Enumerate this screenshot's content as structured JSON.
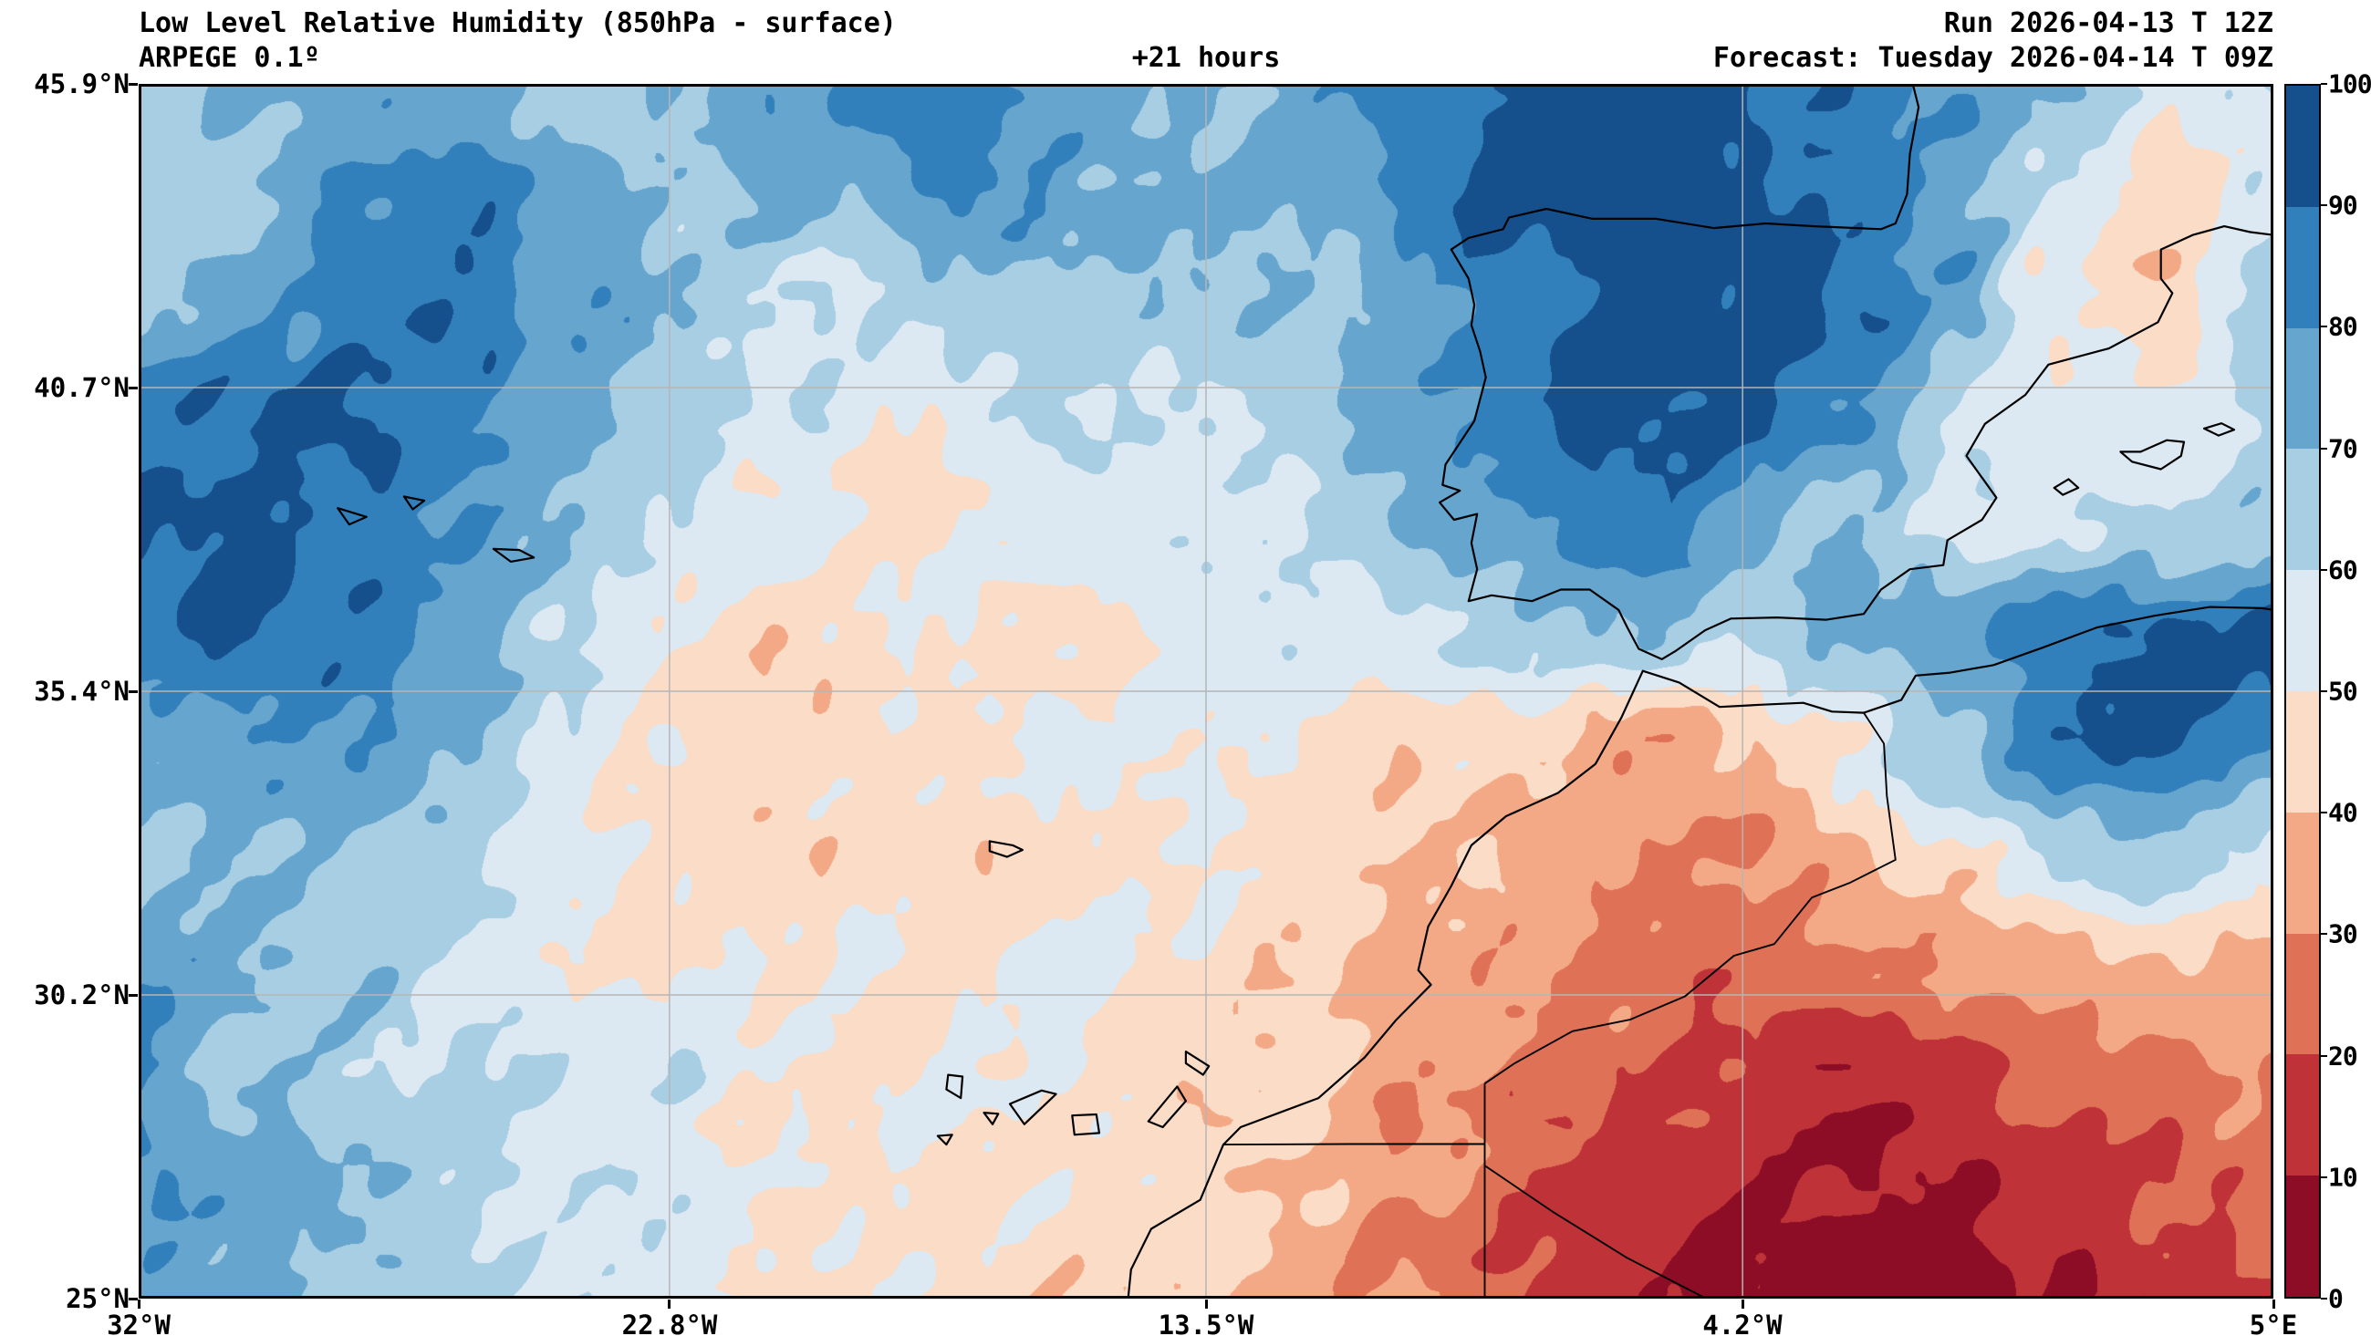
{
  "header": {
    "title": "Low Level Relative Humidity (850hPa - surface)",
    "model": "ARPEGE 0.1º",
    "lead": "+21 hours",
    "run": "Run 2026-04-13 T 12Z",
    "forecast": "Forecast: Tuesday 2026-04-14 T 09Z"
  },
  "axes": {
    "x_ticks": [
      "32°W",
      "22.8°W",
      "13.5°W",
      "4.2°W",
      "5°E"
    ],
    "y_ticks": [
      "45.9°N",
      "40.7°N",
      "35.4°N",
      "30.2°N",
      "25°N"
    ],
    "lon_range": [
      -32,
      5
    ],
    "lat_range": [
      25,
      45.9
    ]
  },
  "colorbar": {
    "tick_labels": [
      100,
      90,
      80,
      70,
      60,
      50,
      40,
      30,
      20,
      10,
      0
    ],
    "palette": [
      "#8c0d25",
      "#bf3338",
      "#df7156",
      "#f4a986",
      "#fbdcc6",
      "#dde9f2",
      "#a8cee4",
      "#66a5ce",
      "#3280bb",
      "#15508d"
    ]
  },
  "chart_data": {
    "type": "heatmap",
    "title": "Low Level Relative Humidity (850hPa - surface)",
    "units": "%",
    "model": "ARPEGE 0.1º",
    "lead_hours": 21,
    "levels": [
      0,
      10,
      20,
      30,
      40,
      50,
      60,
      70,
      80,
      90,
      100
    ],
    "lon_axis_ticks": [
      -32,
      -22.8,
      -13.5,
      -4.2,
      5
    ],
    "lat_axis_ticks": [
      25,
      30.2,
      35.4,
      40.7,
      45.9
    ],
    "lon": [
      -32,
      -30.15,
      -28.3,
      -26.45,
      -24.6,
      -22.75,
      -20.9,
      -19.05,
      -17.2,
      -15.35,
      -13.5,
      -11.65,
      -9.8,
      -7.95,
      -6.1,
      -4.25,
      -2.4,
      -0.55,
      1.3,
      3.15,
      5
    ],
    "lat": [
      45.9,
      44,
      42.1,
      40.2,
      38.3,
      36.4,
      34.5,
      32.6,
      30.7,
      28.8,
      26.9,
      25
    ],
    "values": [
      [
        65,
        70,
        75,
        72,
        66,
        70,
        78,
        84,
        80,
        76,
        72,
        76,
        86,
        94,
        95,
        90,
        85,
        80,
        74,
        55,
        62
      ],
      [
        62,
        66,
        80,
        86,
        76,
        66,
        70,
        74,
        80,
        76,
        70,
        74,
        85,
        94,
        95,
        91,
        86,
        76,
        56,
        46,
        55
      ],
      [
        70,
        76,
        86,
        90,
        80,
        70,
        62,
        60,
        66,
        70,
        66,
        70,
        80,
        90,
        95,
        94,
        90,
        76,
        50,
        42,
        64
      ],
      [
        85,
        90,
        95,
        86,
        72,
        62,
        56,
        50,
        55,
        60,
        60,
        66,
        76,
        90,
        95,
        91,
        80,
        60,
        50,
        56,
        60
      ],
      [
        94,
        95,
        90,
        80,
        70,
        60,
        50,
        48,
        50,
        55,
        56,
        60,
        70,
        80,
        85,
        76,
        65,
        56,
        55,
        60,
        70
      ],
      [
        86,
        90,
        86,
        76,
        60,
        50,
        46,
        45,
        48,
        50,
        54,
        56,
        60,
        66,
        70,
        66,
        70,
        80,
        90,
        95,
        90
      ],
      [
        78,
        80,
        80,
        70,
        56,
        48,
        45,
        45,
        48,
        50,
        50,
        50,
        45,
        40,
        35,
        40,
        52,
        66,
        85,
        90,
        80
      ],
      [
        66,
        70,
        70,
        65,
        56,
        48,
        45,
        45,
        45,
        48,
        50,
        48,
        40,
        34,
        30,
        30,
        36,
        46,
        60,
        68,
        56
      ],
      [
        75,
        72,
        68,
        60,
        55,
        50,
        48,
        48,
        50,
        50,
        48,
        44,
        38,
        32,
        27,
        24,
        25,
        30,
        36,
        40,
        35
      ],
      [
        78,
        70,
        66,
        60,
        58,
        55,
        52,
        50,
        50,
        48,
        45,
        42,
        34,
        27,
        21,
        17,
        14,
        17,
        24,
        30,
        30
      ],
      [
        77,
        72,
        68,
        62,
        58,
        55,
        50,
        48,
        46,
        45,
        42,
        38,
        30,
        22,
        14,
        9,
        7,
        8,
        12,
        18,
        20
      ],
      [
        74,
        70,
        65,
        60,
        58,
        55,
        50,
        48,
        45,
        42,
        40,
        35,
        28,
        20,
        12,
        7,
        5,
        5,
        8,
        15,
        18
      ]
    ]
  },
  "geo": {
    "coastlines": [
      [
        [
          -1.25,
          45.9
        ],
        [
          -1.15,
          45.5
        ],
        [
          -1.3,
          44.7
        ],
        [
          -1.35,
          44.0
        ],
        [
          -1.55,
          43.5
        ],
        [
          -1.8,
          43.4
        ],
        [
          -2.95,
          43.45
        ],
        [
          -3.8,
          43.5
        ],
        [
          -4.7,
          43.42
        ],
        [
          -5.7,
          43.58
        ],
        [
          -6.8,
          43.58
        ],
        [
          -7.6,
          43.75
        ],
        [
          -8.25,
          43.6
        ],
        [
          -8.35,
          43.4
        ],
        [
          -8.95,
          43.25
        ],
        [
          -9.25,
          43.05
        ],
        [
          -8.95,
          42.55
        ],
        [
          -8.85,
          42.1
        ],
        [
          -8.9,
          41.75
        ],
        [
          -8.75,
          41.3
        ],
        [
          -8.65,
          40.85
        ],
        [
          -8.85,
          40.1
        ],
        [
          -9.35,
          39.35
        ],
        [
          -9.4,
          39.0
        ],
        [
          -9.1,
          38.9
        ],
        [
          -9.45,
          38.7
        ],
        [
          -9.2,
          38.4
        ],
        [
          -8.8,
          38.5
        ],
        [
          -8.9,
          38.0
        ],
        [
          -8.8,
          37.55
        ],
        [
          -8.95,
          37.0
        ],
        [
          -8.55,
          37.1
        ],
        [
          -7.85,
          37.0
        ],
        [
          -7.35,
          37.2
        ],
        [
          -6.85,
          37.2
        ],
        [
          -6.35,
          36.85
        ],
        [
          -6.2,
          36.55
        ],
        [
          -6.0,
          36.18
        ],
        [
          -5.6,
          36.0
        ],
        [
          -5.35,
          36.15
        ],
        [
          -4.85,
          36.5
        ],
        [
          -4.4,
          36.7
        ],
        [
          -3.6,
          36.72
        ],
        [
          -2.75,
          36.68
        ],
        [
          -2.1,
          36.78
        ],
        [
          -1.8,
          37.2
        ],
        [
          -1.3,
          37.55
        ],
        [
          -0.72,
          37.62
        ],
        [
          -0.65,
          38.05
        ],
        [
          -0.05,
          38.4
        ],
        [
          0.2,
          38.78
        ],
        [
          -0.32,
          39.5
        ],
        [
          0.0,
          40.05
        ],
        [
          0.7,
          40.55
        ],
        [
          1.1,
          41.07
        ],
        [
          2.15,
          41.35
        ],
        [
          3.0,
          41.8
        ],
        [
          3.25,
          42.3
        ],
        [
          3.05,
          42.55
        ],
        [
          3.05,
          43.05
        ],
        [
          3.6,
          43.3
        ],
        [
          4.15,
          43.45
        ],
        [
          4.6,
          43.35
        ],
        [
          5.0,
          43.3
        ]
      ],
      [
        [
          -5.93,
          35.8
        ],
        [
          -5.3,
          35.6
        ],
        [
          -4.6,
          35.18
        ],
        [
          -3.85,
          35.22
        ],
        [
          -3.15,
          35.25
        ],
        [
          -2.65,
          35.1
        ],
        [
          -2.1,
          35.08
        ],
        [
          -1.45,
          35.3
        ],
        [
          -1.2,
          35.72
        ],
        [
          -0.6,
          35.77
        ],
        [
          0.15,
          35.9
        ],
        [
          1.0,
          36.2
        ],
        [
          1.95,
          36.55
        ],
        [
          2.95,
          36.75
        ],
        [
          3.9,
          36.9
        ],
        [
          4.8,
          36.88
        ],
        [
          5.0,
          36.85
        ]
      ],
      [
        [
          -5.93,
          35.8
        ],
        [
          -6.3,
          35.0
        ],
        [
          -6.75,
          34.2
        ],
        [
          -7.4,
          33.7
        ],
        [
          -8.3,
          33.3
        ],
        [
          -8.9,
          32.8
        ],
        [
          -9.25,
          32.1
        ],
        [
          -9.65,
          31.4
        ],
        [
          -9.82,
          30.65
        ],
        [
          -9.6,
          30.4
        ],
        [
          -10.2,
          29.8
        ],
        [
          -10.75,
          29.15
        ],
        [
          -11.55,
          28.45
        ],
        [
          -12.9,
          27.95
        ],
        [
          -13.2,
          27.65
        ],
        [
          -13.6,
          26.7
        ],
        [
          -14.45,
          26.2
        ],
        [
          -14.8,
          25.5
        ],
        [
          -14.85,
          25.0
        ]
      ],
      [
        [
          -25.85,
          37.9
        ],
        [
          -25.4,
          37.88
        ],
        [
          -25.15,
          37.75
        ],
        [
          -25.55,
          37.68
        ],
        [
          -25.85,
          37.9
        ]
      ],
      [
        [
          -27.4,
          38.8
        ],
        [
          -27.05,
          38.73
        ],
        [
          -27.25,
          38.58
        ],
        [
          -27.4,
          38.8
        ]
      ],
      [
        [
          -28.55,
          38.6
        ],
        [
          -28.05,
          38.45
        ],
        [
          -28.35,
          38.32
        ],
        [
          -28.55,
          38.6
        ]
      ],
      [
        [
          -17.25,
          32.87
        ],
        [
          -16.85,
          32.8
        ],
        [
          -16.68,
          32.72
        ],
        [
          -16.95,
          32.6
        ],
        [
          -17.25,
          32.7
        ],
        [
          -17.25,
          32.87
        ]
      ],
      [
        [
          -13.85,
          29.25
        ],
        [
          -13.45,
          29.0
        ],
        [
          -13.55,
          28.85
        ],
        [
          -13.85,
          29.05
        ],
        [
          -13.85,
          29.25
        ]
      ],
      [
        [
          -14.5,
          28.05
        ],
        [
          -14.0,
          28.65
        ],
        [
          -13.85,
          28.4
        ],
        [
          -14.25,
          27.95
        ],
        [
          -14.5,
          28.05
        ]
      ],
      [
        [
          -15.82,
          28.15
        ],
        [
          -15.4,
          28.17
        ],
        [
          -15.35,
          27.85
        ],
        [
          -15.78,
          27.82
        ],
        [
          -15.82,
          28.15
        ]
      ],
      [
        [
          -16.9,
          28.35
        ],
        [
          -16.35,
          28.58
        ],
        [
          -16.1,
          28.52
        ],
        [
          -16.65,
          28.0
        ],
        [
          -16.9,
          28.35
        ]
      ],
      [
        [
          -17.97,
          28.85
        ],
        [
          -17.72,
          28.82
        ],
        [
          -17.75,
          28.45
        ],
        [
          -18.0,
          28.6
        ],
        [
          -17.97,
          28.85
        ]
      ],
      [
        [
          -17.35,
          28.2
        ],
        [
          -17.1,
          28.18
        ],
        [
          -17.2,
          28.0
        ],
        [
          -17.35,
          28.2
        ]
      ],
      [
        [
          -18.15,
          27.8
        ],
        [
          -17.9,
          27.82
        ],
        [
          -18.0,
          27.65
        ],
        [
          -18.15,
          27.8
        ]
      ],
      [
        [
          2.35,
          39.57
        ],
        [
          2.7,
          39.57
        ],
        [
          3.15,
          39.77
        ],
        [
          3.45,
          39.74
        ],
        [
          3.4,
          39.5
        ],
        [
          3.05,
          39.27
        ],
        [
          2.55,
          39.4
        ],
        [
          2.35,
          39.57
        ]
      ],
      [
        [
          3.8,
          39.97
        ],
        [
          4.1,
          40.06
        ],
        [
          4.32,
          39.95
        ],
        [
          4.05,
          39.85
        ],
        [
          3.8,
          39.97
        ]
      ],
      [
        [
          1.2,
          38.95
        ],
        [
          1.45,
          39.1
        ],
        [
          1.62,
          38.95
        ],
        [
          1.35,
          38.83
        ],
        [
          1.2,
          38.95
        ]
      ]
    ],
    "borders": [
      [
        [
          -2.1,
          35.08
        ],
        [
          -1.75,
          34.55
        ],
        [
          -1.7,
          33.65
        ],
        [
          -1.55,
          32.55
        ],
        [
          -2.35,
          32.15
        ],
        [
          -3.0,
          31.9
        ],
        [
          -3.65,
          31.1
        ],
        [
          -4.35,
          30.9
        ],
        [
          -5.2,
          30.2
        ],
        [
          -6.15,
          29.8
        ],
        [
          -7.15,
          29.6
        ],
        [
          -8.15,
          29.05
        ],
        [
          -8.67,
          28.7
        ]
      ],
      [
        [
          -8.67,
          28.7
        ],
        [
          -8.67,
          25.0
        ]
      ],
      [
        [
          -8.67,
          27.66
        ],
        [
          -11.0,
          27.66
        ],
        [
          -13.2,
          27.65
        ]
      ],
      [
        [
          -8.67,
          27.29
        ],
        [
          -7.5,
          26.5
        ],
        [
          -6.2,
          25.7
        ],
        [
          -4.83,
          25.0
        ]
      ]
    ]
  }
}
